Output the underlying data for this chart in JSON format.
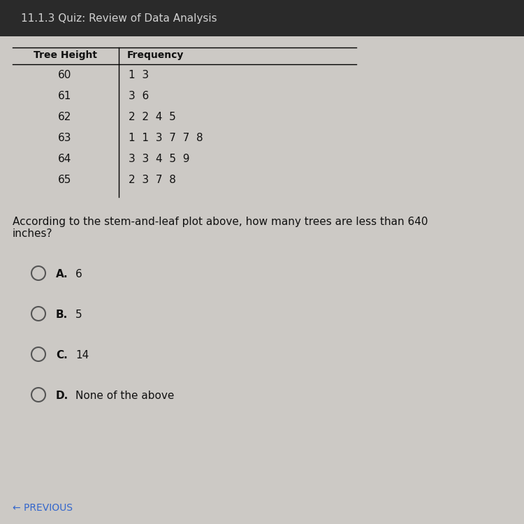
{
  "header_title": "11.1.3 Quiz: Review of Data Analysis",
  "table_col1_header": "Tree Height",
  "table_col2_header": "Frequency",
  "table_rows": [
    [
      "60",
      "13"
    ],
    [
      "61",
      "36"
    ],
    [
      "62",
      "2245"
    ],
    [
      "63",
      "113778"
    ],
    [
      "64",
      "33459"
    ],
    [
      "65",
      "2378"
    ]
  ],
  "question": "According to the stem-and-leaf plot above, how many trees are less than 640\ninches?",
  "choices": [
    {
      "letter": "A.",
      "text": "6"
    },
    {
      "letter": "B.",
      "text": "5"
    },
    {
      "letter": "C.",
      "text": "14"
    },
    {
      "letter": "D.",
      "text": "None of the above"
    }
  ],
  "footer": "← PREVIOUS",
  "bg_color": "#ccc9c5",
  "header_bg": "#2a2a2a",
  "table_bg": "#e8e4e0",
  "text_color": "#111111",
  "header_text_color": "#d0d0d0",
  "footer_color": "#3366cc",
  "fig_width": 7.5,
  "fig_height": 7.5,
  "dpi": 100
}
